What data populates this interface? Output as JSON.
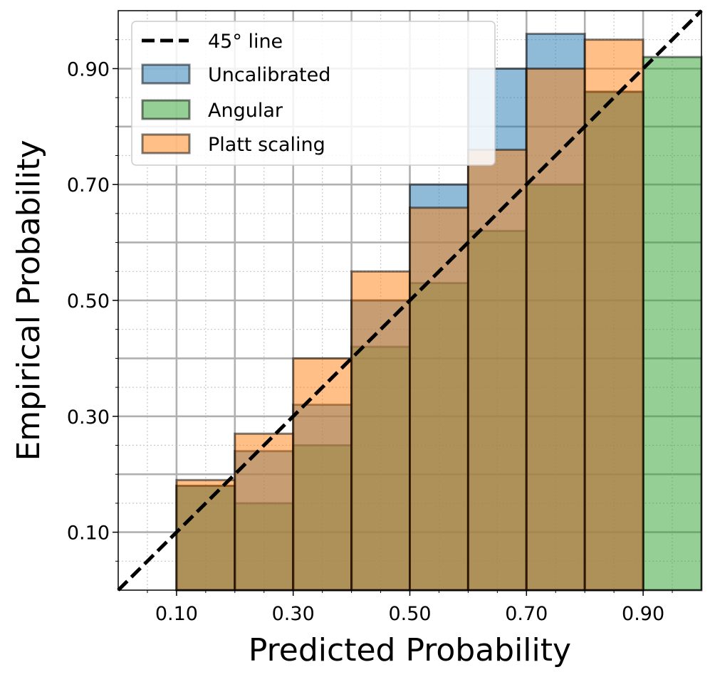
{
  "chart_data": {
    "type": "bar",
    "xlabel": "Predicted Probability",
    "ylabel": "Empirical Probability",
    "xlim": [
      0,
      1
    ],
    "ylim": [
      0,
      1
    ],
    "x_ticks": [
      0.1,
      0.3,
      0.5,
      0.7,
      0.9
    ],
    "x_tick_labels": [
      "0.10",
      "0.30",
      "0.50",
      "0.70",
      "0.90"
    ],
    "y_ticks": [
      0.1,
      0.3,
      0.5,
      0.7,
      0.9
    ],
    "y_tick_labels": [
      "0.10",
      "0.30",
      "0.50",
      "0.70",
      "0.90"
    ],
    "grid": true,
    "legend_position": "top-left",
    "bins": [
      [
        0.1,
        0.2
      ],
      [
        0.2,
        0.3
      ],
      [
        0.3,
        0.4
      ],
      [
        0.4,
        0.5
      ],
      [
        0.5,
        0.6
      ],
      [
        0.6,
        0.7
      ],
      [
        0.7,
        0.8
      ],
      [
        0.8,
        0.9
      ],
      [
        0.9,
        1.0
      ]
    ],
    "reference_line": {
      "name": "45° line",
      "x": [
        0,
        1
      ],
      "y": [
        0,
        1
      ],
      "color": "#000000",
      "style": "dashed"
    },
    "series": [
      {
        "name": "Uncalibrated",
        "color": "#1f77b4",
        "values": [
          0.18,
          0.24,
          0.32,
          0.5,
          0.7,
          0.9,
          0.96,
          0.86,
          null
        ]
      },
      {
        "name": "Angular",
        "color": "#2ca02c",
        "values": [
          0.18,
          0.15,
          0.25,
          0.42,
          0.53,
          0.62,
          0.7,
          0.86,
          0.92
        ]
      },
      {
        "name": "Platt scaling",
        "color": "#ff7f0e",
        "values": [
          0.19,
          0.27,
          0.4,
          0.55,
          0.66,
          0.76,
          0.9,
          0.95,
          null
        ]
      }
    ]
  }
}
